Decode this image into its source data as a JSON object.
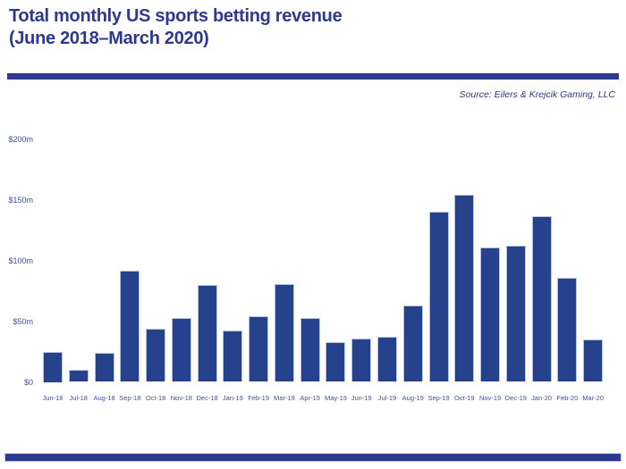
{
  "header": {
    "title_line1": "Total monthly US sports betting revenue",
    "title_line2": "(June 2018–March 2020)",
    "source": "Source: Eilers & Krejcik Gaming, LLC"
  },
  "colors": {
    "primary": "#2b3990",
    "bar_fill": "#27428c",
    "bar_border": "#b7c2e2",
    "axis_label": "#3c52a4"
  },
  "chart_data": {
    "type": "bar",
    "title": "Total monthly US sports betting revenue (June 2018–March 2020)",
    "unit": "USD millions",
    "categories": [
      "Jun-18",
      "Jul-18",
      "Aug-18",
      "Sep-18",
      "Oct-18",
      "Nov-18",
      "Dec-18",
      "Jan-19",
      "Feb-19",
      "Mar-19",
      "Apr-19",
      "May-19",
      "Jun-19",
      "Jul-19",
      "Aug-19",
      "Sep-19",
      "Oct-19",
      "Nov-19",
      "Dec-19",
      "Jan-20",
      "Feb-20",
      "Mar-20"
    ],
    "values": [
      25,
      10,
      24,
      92,
      44,
      53,
      80,
      42,
      54,
      81,
      53,
      33,
      36,
      37,
      63,
      140,
      154,
      111,
      112,
      137,
      86,
      35
    ],
    "y_ticks": [
      "$0",
      "$50m",
      "$100m",
      "$150m",
      "$200m"
    ],
    "y_tick_values": [
      0,
      50,
      100,
      150,
      200
    ],
    "ylim": [
      0,
      200
    ],
    "xlabel": "",
    "ylabel": "",
    "grid": false,
    "legend": false,
    "source": "Source: Eilers & Krejcik Gaming, LLC"
  }
}
